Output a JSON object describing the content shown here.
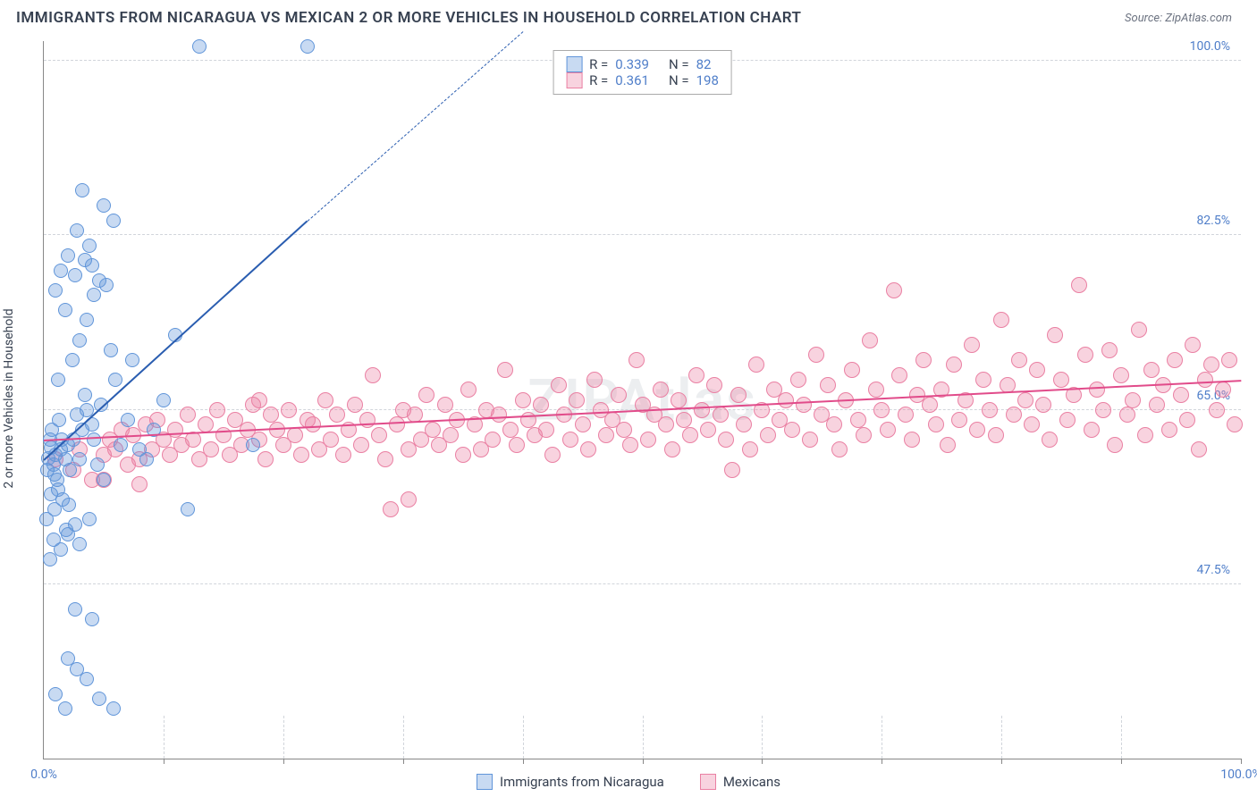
{
  "title": "IMMIGRANTS FROM NICARAGUA VS MEXICAN 2 OR MORE VEHICLES IN HOUSEHOLD CORRELATION CHART",
  "source": "Source: ZipAtlas.com",
  "watermark": "ZIPAtlas",
  "axes": {
    "y_label": "2 or more Vehicles in Household",
    "x_min_label": "0.0%",
    "x_max_label": "100.0%",
    "y_ticks": [
      {
        "v": 47.5,
        "label": "47.5%"
      },
      {
        "v": 65.0,
        "label": "65.0%"
      },
      {
        "v": 82.5,
        "label": "82.5%"
      },
      {
        "v": 100.0,
        "label": "100.0%"
      }
    ],
    "x_ticks_pct": [
      10,
      20,
      30,
      40,
      50,
      60,
      70,
      80,
      90,
      100
    ],
    "ylim": [
      30,
      102
    ],
    "xlim": [
      0,
      100
    ]
  },
  "series": {
    "a": {
      "name": "Immigrants from Nicaragua",
      "fill": "rgba(96,149,217,0.35)",
      "stroke": "#6095d9",
      "line_color": "#2a5db0",
      "R": "0.339",
      "N": "82",
      "trend": {
        "x1": 0,
        "y1": 60,
        "x2": 22,
        "y2": 84,
        "x2d": 40,
        "y2d": 103
      },
      "marker_r": 8,
      "points": [
        [
          0.4,
          60.1
        ],
        [
          0.6,
          61.2
        ],
        [
          0.8,
          59.5
        ],
        [
          0.5,
          62.0
        ],
        [
          0.9,
          58.5
        ],
        [
          1.2,
          57.0
        ],
        [
          1.0,
          60.5
        ],
        [
          1.4,
          61.0
        ],
        [
          0.3,
          59.0
        ],
        [
          0.7,
          63.0
        ],
        [
          1.1,
          58.0
        ],
        [
          1.5,
          62.0
        ],
        [
          0.6,
          56.5
        ],
        [
          1.8,
          60.0
        ],
        [
          2.0,
          61.5
        ],
        [
          2.2,
          59.0
        ],
        [
          1.3,
          64.0
        ],
        [
          2.5,
          62.0
        ],
        [
          2.8,
          64.5
        ],
        [
          0.2,
          54.0
        ],
        [
          0.9,
          55.0
        ],
        [
          1.6,
          56.0
        ],
        [
          2.1,
          55.5
        ],
        [
          1.9,
          53.0
        ],
        [
          3.0,
          60.0
        ],
        [
          3.2,
          63.0
        ],
        [
          3.4,
          66.5
        ],
        [
          3.6,
          65.0
        ],
        [
          4.0,
          63.5
        ],
        [
          4.2,
          62.0
        ],
        [
          4.5,
          59.5
        ],
        [
          4.8,
          65.5
        ],
        [
          5.0,
          58.0
        ],
        [
          0.8,
          52.0
        ],
        [
          1.4,
          51.0
        ],
        [
          2.0,
          52.5
        ],
        [
          0.5,
          50.0
        ],
        [
          3.8,
          54.0
        ],
        [
          2.6,
          53.5
        ],
        [
          3.0,
          51.5
        ],
        [
          1.2,
          68.0
        ],
        [
          2.4,
          70.0
        ],
        [
          3.0,
          72.0
        ],
        [
          3.6,
          74.0
        ],
        [
          4.2,
          76.5
        ],
        [
          1.8,
          75.0
        ],
        [
          1.0,
          77.0
        ],
        [
          2.6,
          78.5
        ],
        [
          3.4,
          80.0
        ],
        [
          4.0,
          79.5
        ],
        [
          2.0,
          80.5
        ],
        [
          1.4,
          79.0
        ],
        [
          3.8,
          81.5
        ],
        [
          2.8,
          83.0
        ],
        [
          4.6,
          78.0
        ],
        [
          5.2,
          77.5
        ],
        [
          5.6,
          71.0
        ],
        [
          6.0,
          68.0
        ],
        [
          6.4,
          61.5
        ],
        [
          7.0,
          64.0
        ],
        [
          7.4,
          70.0
        ],
        [
          8.0,
          61.0
        ],
        [
          8.6,
          60.0
        ],
        [
          9.2,
          63.0
        ],
        [
          10.0,
          66.0
        ],
        [
          11.0,
          72.5
        ],
        [
          12.0,
          55.0
        ],
        [
          17.5,
          61.5
        ],
        [
          13.0,
          101.5
        ],
        [
          22.0,
          101.5
        ],
        [
          5.8,
          84.0
        ],
        [
          5.0,
          85.5
        ],
        [
          3.2,
          87.0
        ],
        [
          2.0,
          40.0
        ],
        [
          2.8,
          39.0
        ],
        [
          3.6,
          38.0
        ],
        [
          4.6,
          36.0
        ],
        [
          5.8,
          35.0
        ],
        [
          1.0,
          36.5
        ],
        [
          1.8,
          35.0
        ],
        [
          2.6,
          45.0
        ],
        [
          4.0,
          44.0
        ]
      ]
    },
    "b": {
      "name": "Mexicans",
      "fill": "rgba(234,128,163,0.35)",
      "stroke": "#ea80a3",
      "line_color": "#e14b8a",
      "R": "0.361",
      "N": "198",
      "trend": {
        "x1": 0,
        "y1": 62,
        "x2": 100,
        "y2": 68
      },
      "marker_r": 9,
      "points": [
        [
          1.0,
          60.0
        ],
        [
          2.5,
          59.0
        ],
        [
          3.0,
          61.0
        ],
        [
          4.0,
          58.0
        ],
        [
          5.0,
          60.5
        ],
        [
          5.5,
          62.0
        ],
        [
          6.0,
          61.0
        ],
        [
          6.5,
          63.0
        ],
        [
          7.0,
          59.5
        ],
        [
          7.5,
          62.5
        ],
        [
          8.0,
          60.0
        ],
        [
          8.5,
          63.5
        ],
        [
          9.0,
          61.0
        ],
        [
          9.5,
          64.0
        ],
        [
          10.0,
          62.0
        ],
        [
          10.5,
          60.5
        ],
        [
          11.0,
          63.0
        ],
        [
          11.5,
          61.5
        ],
        [
          12.0,
          64.5
        ],
        [
          12.5,
          62.0
        ],
        [
          13.0,
          60.0
        ],
        [
          13.5,
          63.5
        ],
        [
          14.0,
          61.0
        ],
        [
          14.5,
          65.0
        ],
        [
          15.0,
          62.5
        ],
        [
          15.5,
          60.5
        ],
        [
          16.0,
          64.0
        ],
        [
          16.5,
          61.5
        ],
        [
          17.0,
          63.0
        ],
        [
          17.5,
          65.5
        ],
        [
          18.0,
          62.0
        ],
        [
          18.5,
          60.0
        ],
        [
          19.0,
          64.5
        ],
        [
          19.5,
          63.0
        ],
        [
          20.0,
          61.5
        ],
        [
          20.5,
          65.0
        ],
        [
          21.0,
          62.5
        ],
        [
          21.5,
          60.5
        ],
        [
          22.0,
          64.0
        ],
        [
          22.5,
          63.5
        ],
        [
          23.0,
          61.0
        ],
        [
          23.5,
          66.0
        ],
        [
          24.0,
          62.0
        ],
        [
          24.5,
          64.5
        ],
        [
          25.0,
          60.5
        ],
        [
          25.5,
          63.0
        ],
        [
          26.0,
          65.5
        ],
        [
          26.5,
          61.5
        ],
        [
          27.0,
          64.0
        ],
        [
          27.5,
          68.5
        ],
        [
          28.0,
          62.5
        ],
        [
          28.5,
          60.0
        ],
        [
          29.0,
          55.0
        ],
        [
          29.5,
          63.5
        ],
        [
          30.0,
          65.0
        ],
        [
          30.5,
          61.0
        ],
        [
          31.0,
          64.5
        ],
        [
          31.5,
          62.0
        ],
        [
          32.0,
          66.5
        ],
        [
          32.5,
          63.0
        ],
        [
          33.0,
          61.5
        ],
        [
          33.5,
          65.5
        ],
        [
          34.0,
          62.5
        ],
        [
          34.5,
          64.0
        ],
        [
          35.0,
          60.5
        ],
        [
          35.5,
          67.0
        ],
        [
          36.0,
          63.5
        ],
        [
          36.5,
          61.0
        ],
        [
          37.0,
          65.0
        ],
        [
          37.5,
          62.0
        ],
        [
          38.0,
          64.5
        ],
        [
          38.5,
          69.0
        ],
        [
          39.0,
          63.0
        ],
        [
          39.5,
          61.5
        ],
        [
          40.0,
          66.0
        ],
        [
          40.5,
          64.0
        ],
        [
          41.0,
          62.5
        ],
        [
          41.5,
          65.5
        ],
        [
          42.0,
          63.0
        ],
        [
          42.5,
          60.5
        ],
        [
          43.0,
          67.5
        ],
        [
          43.5,
          64.5
        ],
        [
          44.0,
          62.0
        ],
        [
          44.5,
          66.0
        ],
        [
          45.0,
          63.5
        ],
        [
          45.5,
          61.0
        ],
        [
          46.0,
          68.0
        ],
        [
          46.5,
          65.0
        ],
        [
          47.0,
          62.5
        ],
        [
          47.5,
          64.0
        ],
        [
          48.0,
          66.5
        ],
        [
          48.5,
          63.0
        ],
        [
          49.0,
          61.5
        ],
        [
          49.5,
          70.0
        ],
        [
          50.0,
          65.5
        ],
        [
          50.5,
          62.0
        ],
        [
          51.0,
          64.5
        ],
        [
          51.5,
          67.0
        ],
        [
          52.0,
          63.5
        ],
        [
          52.5,
          61.0
        ],
        [
          53.0,
          66.0
        ],
        [
          53.5,
          64.0
        ],
        [
          54.0,
          62.5
        ],
        [
          54.5,
          68.5
        ],
        [
          55.0,
          65.0
        ],
        [
          55.5,
          63.0
        ],
        [
          56.0,
          67.5
        ],
        [
          56.5,
          64.5
        ],
        [
          57.0,
          62.0
        ],
        [
          57.5,
          59.0
        ],
        [
          58.0,
          66.5
        ],
        [
          58.5,
          63.5
        ],
        [
          59.0,
          61.0
        ],
        [
          59.5,
          69.5
        ],
        [
          60.0,
          65.0
        ],
        [
          60.5,
          62.5
        ],
        [
          61.0,
          67.0
        ],
        [
          61.5,
          64.0
        ],
        [
          62.0,
          66.0
        ],
        [
          62.5,
          63.0
        ],
        [
          63.0,
          68.0
        ],
        [
          63.5,
          65.5
        ],
        [
          64.0,
          62.0
        ],
        [
          64.5,
          70.5
        ],
        [
          65.0,
          64.5
        ],
        [
          65.5,
          67.5
        ],
        [
          66.0,
          63.5
        ],
        [
          66.5,
          61.0
        ],
        [
          67.0,
          66.0
        ],
        [
          67.5,
          69.0
        ],
        [
          68.0,
          64.0
        ],
        [
          68.5,
          62.5
        ],
        [
          69.0,
          72.0
        ],
        [
          69.5,
          67.0
        ],
        [
          70.0,
          65.0
        ],
        [
          70.5,
          63.0
        ],
        [
          71.0,
          77.0
        ],
        [
          71.5,
          68.5
        ],
        [
          72.0,
          64.5
        ],
        [
          72.5,
          62.0
        ],
        [
          73.0,
          66.5
        ],
        [
          73.5,
          70.0
        ],
        [
          74.0,
          65.5
        ],
        [
          74.5,
          63.5
        ],
        [
          75.0,
          67.0
        ],
        [
          75.5,
          61.5
        ],
        [
          76.0,
          69.5
        ],
        [
          76.5,
          64.0
        ],
        [
          77.0,
          66.0
        ],
        [
          77.5,
          71.5
        ],
        [
          78.0,
          63.0
        ],
        [
          78.5,
          68.0
        ],
        [
          79.0,
          65.0
        ],
        [
          79.5,
          62.5
        ],
        [
          80.0,
          74.0
        ],
        [
          80.5,
          67.5
        ],
        [
          81.0,
          64.5
        ],
        [
          81.5,
          70.0
        ],
        [
          82.0,
          66.0
        ],
        [
          82.5,
          63.5
        ],
        [
          83.0,
          69.0
        ],
        [
          83.5,
          65.5
        ],
        [
          84.0,
          62.0
        ],
        [
          84.5,
          72.5
        ],
        [
          85.0,
          68.0
        ],
        [
          85.5,
          64.0
        ],
        [
          86.0,
          66.5
        ],
        [
          86.5,
          77.5
        ],
        [
          87.0,
          70.5
        ],
        [
          87.5,
          63.0
        ],
        [
          88.0,
          67.0
        ],
        [
          88.5,
          65.0
        ],
        [
          89.0,
          71.0
        ],
        [
          89.5,
          61.5
        ],
        [
          90.0,
          68.5
        ],
        [
          90.5,
          64.5
        ],
        [
          91.0,
          66.0
        ],
        [
          91.5,
          73.0
        ],
        [
          92.0,
          62.5
        ],
        [
          92.5,
          69.0
        ],
        [
          93.0,
          65.5
        ],
        [
          93.5,
          67.5
        ],
        [
          94.0,
          63.0
        ],
        [
          94.5,
          70.0
        ],
        [
          95.0,
          66.5
        ],
        [
          95.5,
          64.0
        ],
        [
          96.0,
          71.5
        ],
        [
          96.5,
          61.0
        ],
        [
          97.0,
          68.0
        ],
        [
          97.5,
          69.5
        ],
        [
          98.0,
          65.0
        ],
        [
          98.5,
          67.0
        ],
        [
          99.0,
          70.0
        ],
        [
          99.5,
          63.5
        ],
        [
          30.5,
          56.0
        ],
        [
          18.0,
          66.0
        ],
        [
          5.0,
          58.0
        ],
        [
          8.0,
          57.5
        ]
      ]
    }
  },
  "colors": {
    "text_primary": "#374151",
    "accent": "#4f7ec9",
    "grid": "#d1d5db",
    "axis": "#888888",
    "background": "#ffffff"
  }
}
